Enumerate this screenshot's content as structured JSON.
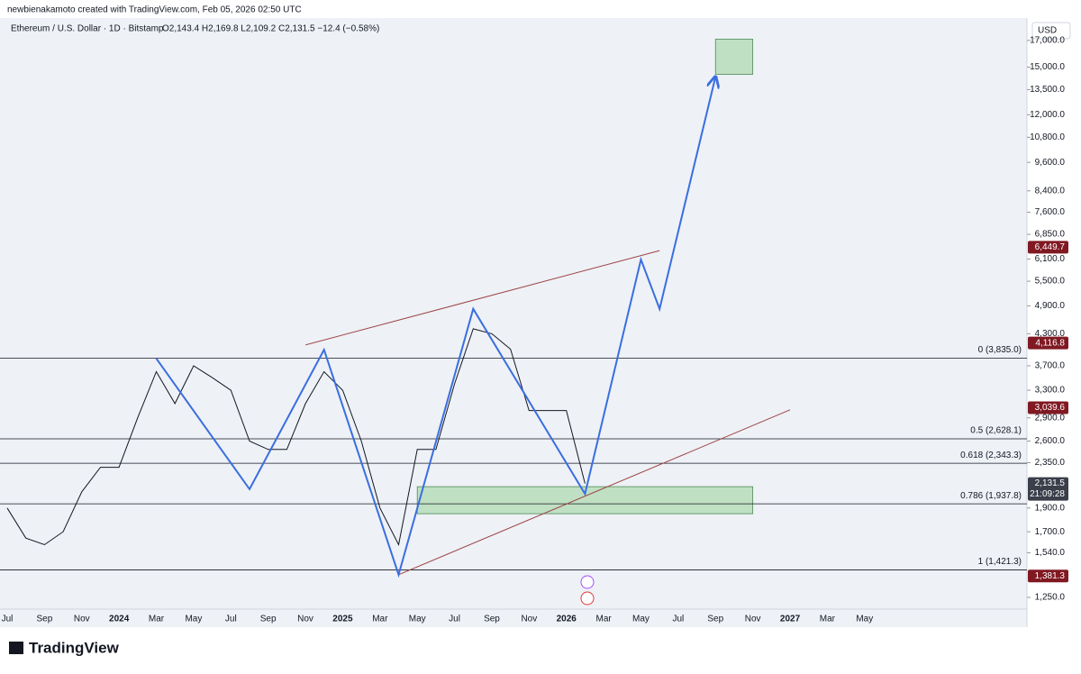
{
  "header": {
    "credit": "newbienakamoto created with TradingView.com, Feb 05, 2026 02:50 UTC",
    "symbol": "Ethereum / U.S. Dollar · 1D · Bitstamp",
    "ohlc": "O2,143.4 H2,169.8 L2,109.2 C2,131.5 −12.4 (−0.58%)"
  },
  "chart_data": {
    "type": "line",
    "currency": "USD",
    "log_scale": true,
    "xlim": [
      "2023-07",
      "2028-02"
    ],
    "ylim": [
      1188,
      18100
    ],
    "xticks": [
      {
        "value": "2023-07",
        "label": "Jul"
      },
      {
        "value": "2023-09",
        "label": "Sep"
      },
      {
        "value": "2023-11",
        "label": "Nov"
      },
      {
        "value": "2024-01",
        "label": "2024"
      },
      {
        "value": "2024-03",
        "label": "Mar"
      },
      {
        "value": "2024-05",
        "label": "May"
      },
      {
        "value": "2024-07",
        "label": "Jul"
      },
      {
        "value": "2024-09",
        "label": "Sep"
      },
      {
        "value": "2024-11",
        "label": "Nov"
      },
      {
        "value": "2025-01",
        "label": "2025"
      },
      {
        "value": "2025-03",
        "label": "Mar"
      },
      {
        "value": "2025-05",
        "label": "May"
      },
      {
        "value": "2025-07",
        "label": "Jul"
      },
      {
        "value": "2025-09",
        "label": "Sep"
      },
      {
        "value": "2025-11",
        "label": "Nov"
      },
      {
        "value": "2026-01",
        "label": "2026"
      },
      {
        "value": "2026-03",
        "label": "Mar"
      },
      {
        "value": "2026-05",
        "label": "May"
      },
      {
        "value": "2026-07",
        "label": "Jul"
      },
      {
        "value": "2026-09",
        "label": "Sep"
      },
      {
        "value": "2026-11",
        "label": "Nov"
      },
      {
        "value": "2027-01",
        "label": "2027"
      },
      {
        "value": "2027-03",
        "label": "Mar"
      },
      {
        "value": "2027-05",
        "label": "May"
      }
    ],
    "yticks": [
      {
        "value": 1250,
        "label": "1,250.0"
      },
      {
        "value": 1540,
        "label": "1,540.0"
      },
      {
        "value": 1700,
        "label": "1,700.0"
      },
      {
        "value": 1900,
        "label": "1,900.0"
      },
      {
        "value": 2350,
        "label": "2,350.0"
      },
      {
        "value": 2600,
        "label": "2,600.0"
      },
      {
        "value": 2900,
        "label": "2,900.0"
      },
      {
        "value": 3300,
        "label": "3,300.0"
      },
      {
        "value": 3700,
        "label": "3,700.0"
      },
      {
        "value": 4300,
        "label": "4,300.0"
      },
      {
        "value": 4900,
        "label": "4,900.0"
      },
      {
        "value": 5500,
        "label": "5,500.0"
      },
      {
        "value": 6100,
        "label": "6,100.0"
      },
      {
        "value": 6850,
        "label": "6,850.0"
      },
      {
        "value": 7600,
        "label": "7,600.0"
      },
      {
        "value": 8400,
        "label": "8,400.0"
      },
      {
        "value": 9600,
        "label": "9,600.0"
      },
      {
        "value": 10800,
        "label": "10,800.0"
      },
      {
        "value": 12000,
        "label": "12,000.0"
      },
      {
        "value": 13500,
        "label": "13,500.0"
      },
      {
        "value": 15000,
        "label": "15,000.0"
      },
      {
        "value": 17000,
        "label": "17,000.0"
      }
    ],
    "series": [
      {
        "color": "#131722",
        "x": [
          "2023-07",
          "2023-08",
          "2023-09",
          "2023-10",
          "2023-11",
          "2023-12",
          "2024-01",
          "2024-02",
          "2024-03",
          "2024-04",
          "2024-05",
          "2024-06",
          "2024-07",
          "2024-08",
          "2024-09",
          "2024-10",
          "2024-11",
          "2024-12",
          "2025-01",
          "2025-02",
          "2025-03",
          "2025-04",
          "2025-05",
          "2025-06",
          "2025-07",
          "2025-08",
          "2025-09",
          "2025-10",
          "2025-11",
          "2025-12",
          "2026-01",
          "2026-02"
        ],
        "values": [
          1900,
          1650,
          1600,
          1700,
          2050,
          2300,
          2300,
          2900,
          3600,
          3100,
          3700,
          3500,
          3300,
          2600,
          2500,
          2500,
          3100,
          3600,
          3300,
          2600,
          1900,
          1600,
          2500,
          2500,
          3400,
          4400,
          4300,
          4000,
          3000,
          3000,
          3000,
          2131.5
        ]
      },
      {
        "color": "#3a6ee0",
        "x": [
          "2024-03",
          "2024-08",
          "2024-12",
          "2025-04",
          "2025-08",
          "2026-02",
          "2026-05",
          "2026-06",
          "2026-09"
        ],
        "values": [
          3830,
          2075,
          3990,
          1390,
          4830,
          2030,
          6090,
          4830,
          14350
        ]
      }
    ],
    "trendlines": [
      {
        "color": "#9c4545",
        "x": [
          "2024-11",
          "2026-06"
        ],
        "values": [
          4080,
          6350
        ]
      },
      {
        "color": "#9c4545",
        "x": [
          "2025-04",
          "2027-01"
        ],
        "values": [
          1390,
          3010
        ]
      }
    ],
    "zones": [
      {
        "color": "#bfe0c2",
        "x": [
          "2025-05",
          "2026-11"
        ],
        "values": [
          2100,
          1850
        ]
      },
      {
        "color": "#bfe0c2",
        "x": [
          "2026-09",
          "2026-11"
        ],
        "values": [
          17100,
          14500
        ]
      }
    ],
    "fib_levels": [
      {
        "label": "0 (3,835.0)",
        "value": 3835
      },
      {
        "label": "0.5 (2,628.1)",
        "value": 2628.1
      },
      {
        "label": "0.618 (2,343.3)",
        "value": 2343.3
      },
      {
        "label": "0.786 (1,937.8)",
        "value": 1937.8
      },
      {
        "label": "1 (1,421.3)",
        "value": 1421.3
      }
    ],
    "price_tags": [
      {
        "value": 6449.7,
        "label": "6,449.7",
        "color": "#801922"
      },
      {
        "value": 4116.8,
        "label": "4,116.8",
        "color": "#801922"
      },
      {
        "value": 3039.6,
        "label": "3,039.6",
        "color": "#801922"
      },
      {
        "value": 2131.5,
        "label": "2,131.5",
        "countdown": "21:09:28",
        "color": "#3b3f4a"
      },
      {
        "value": 1381.3,
        "label": "1,381.3",
        "color": "#801922"
      }
    ]
  },
  "footer": {
    "logo": "TradingView"
  }
}
